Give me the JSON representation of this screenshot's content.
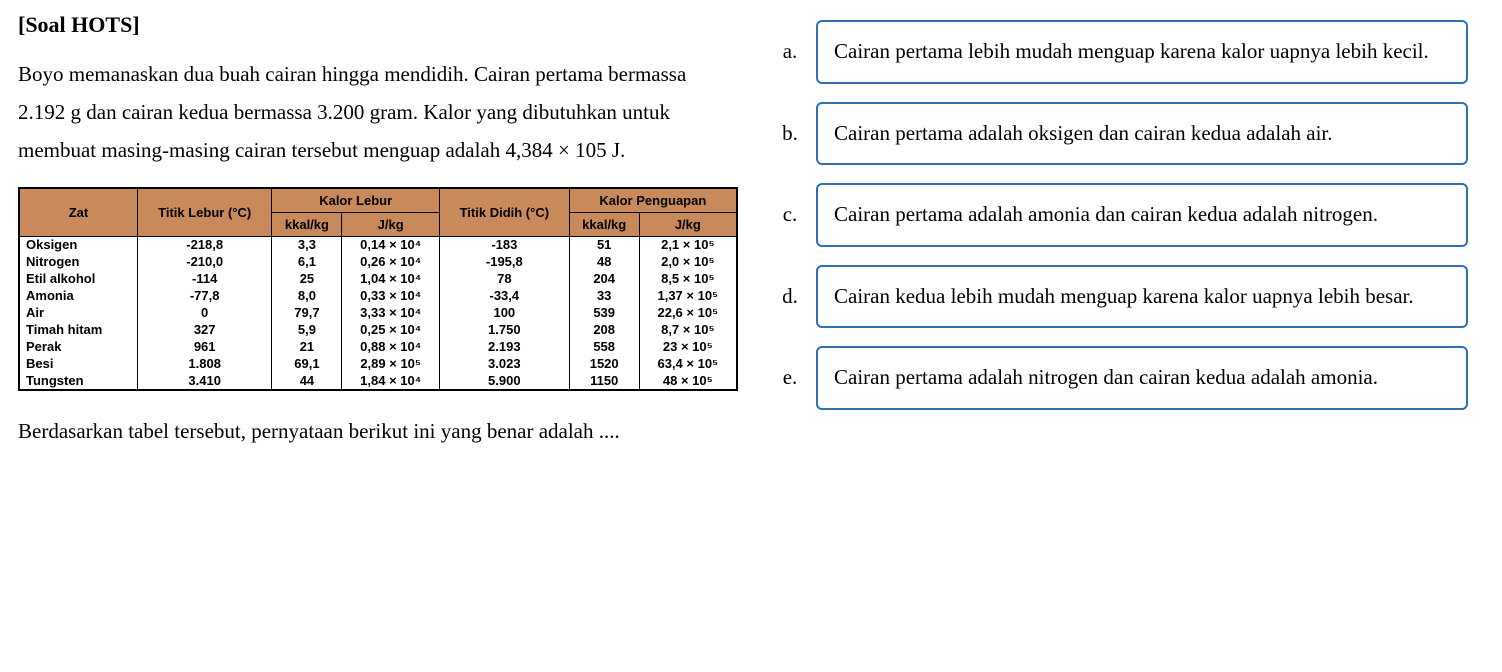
{
  "heading": "[Soal HOTS]",
  "problem": "Boyo memanaskan dua buah cairan hingga mendidih. Cairan pertama bermassa 2.192 g dan cairan kedua bermassa 3.200 gram. Kalor yang dibutuhkan untuk membuat masing-masing cairan tersebut menguap adalah 4,384 × 105 J.",
  "table": {
    "header_row_bg": "#c88a5a",
    "headers": {
      "zat": "Zat",
      "titik_lebur": "Titik Lebur (°C)",
      "kalor_lebur": "Kalor Lebur",
      "kkal_kg_l": "kkal/kg",
      "j_kg_l": "J/kg",
      "titik_didih": "Titik Didih (°C)",
      "kalor_penguapan": "Kalor Penguapan",
      "kkal_kg_p": "kkal/kg",
      "j_kg_p": "J/kg"
    },
    "rows": [
      {
        "zat": "Oksigen",
        "tl": "-218,8",
        "kl_k": "3,3",
        "kl_j": "0,14 × 10⁴",
        "td": "-183",
        "kp_k": "51",
        "kp_j": "2,1 × 10⁵"
      },
      {
        "zat": "Nitrogen",
        "tl": "-210,0",
        "kl_k": "6,1",
        "kl_j": "0,26 × 10⁴",
        "td": "-195,8",
        "kp_k": "48",
        "kp_j": "2,0 × 10⁵"
      },
      {
        "zat": "Etil alkohol",
        "tl": "-114",
        "kl_k": "25",
        "kl_j": "1,04 × 10⁴",
        "td": "78",
        "kp_k": "204",
        "kp_j": "8,5 × 10⁵"
      },
      {
        "zat": "Amonia",
        "tl": "-77,8",
        "kl_k": "8,0",
        "kl_j": "0,33 × 10⁴",
        "td": "-33,4",
        "kp_k": "33",
        "kp_j": "1,37 × 10⁵"
      },
      {
        "zat": "Air",
        "tl": "0",
        "kl_k": "79,7",
        "kl_j": "3,33 × 10⁴",
        "td": "100",
        "kp_k": "539",
        "kp_j": "22,6 × 10⁵"
      },
      {
        "zat": "Timah hitam",
        "tl": "327",
        "kl_k": "5,9",
        "kl_j": "0,25 × 10⁴",
        "td": "1.750",
        "kp_k": "208",
        "kp_j": "8,7 × 10⁵"
      },
      {
        "zat": "Perak",
        "tl": "961",
        "kl_k": "21",
        "kl_j": "0,88 × 10⁴",
        "td": "2.193",
        "kp_k": "558",
        "kp_j": "23 × 10⁵"
      },
      {
        "zat": "Besi",
        "tl": "1.808",
        "kl_k": "69,1",
        "kl_j": "2,89 × 10⁵",
        "td": "3.023",
        "kp_k": "1520",
        "kp_j": "63,4 × 10⁵"
      },
      {
        "zat": "Tungsten",
        "tl": "3.410",
        "kl_k": "44",
        "kl_j": "1,84 × 10⁴",
        "td": "5.900",
        "kp_k": "1150",
        "kp_j": "48 × 10⁵"
      }
    ]
  },
  "question_tail": "Berdasarkan tabel tersebut, pernyataan berikut ini yang benar adalah ....",
  "choices": [
    {
      "letter": "a.",
      "text": "Cairan pertama lebih mudah menguap karena kalor uapnya lebih kecil."
    },
    {
      "letter": "b.",
      "text": "Cairan pertama adalah oksigen dan cairan kedua adalah air."
    },
    {
      "letter": "c.",
      "text": "Cairan pertama adalah amonia dan cairan kedua adalah nitrogen."
    },
    {
      "letter": "d.",
      "text": "Cairan kedua lebih mudah menguap karena kalor uapnya lebih besar."
    },
    {
      "letter": "e.",
      "text": "Cairan pertama adalah nitrogen dan cairan kedua adalah amonia."
    }
  ],
  "colors": {
    "choice_border": "#2f6fb5",
    "text": "#000000",
    "bg": "#ffffff"
  }
}
